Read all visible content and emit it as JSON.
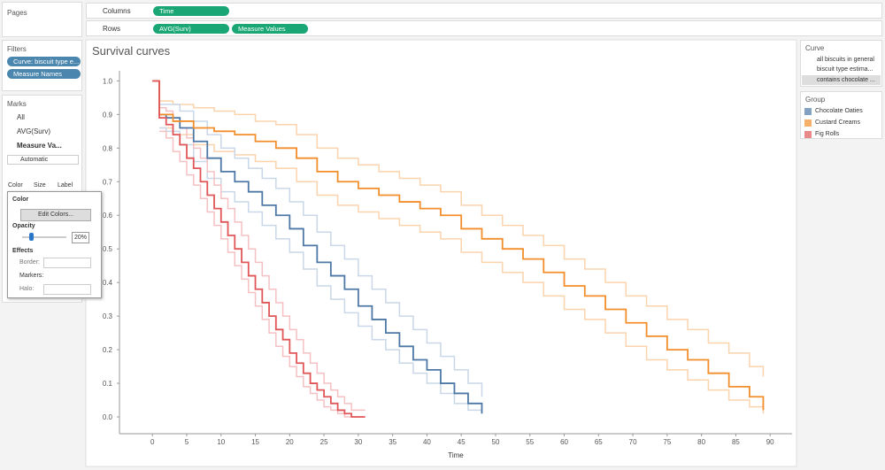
{
  "shelves": {
    "columns_label": "Columns",
    "columns_pills": [
      "Time"
    ],
    "rows_label": "Rows",
    "rows_pills": [
      "AVG(Surv)",
      "Measure Values"
    ]
  },
  "left_panel": {
    "pages_title": "Pages",
    "filters_title": "Filters",
    "filter_pills": [
      "Curve: biscuit type e...",
      "Measure Names"
    ],
    "marks_title": "Marks",
    "marks_cards": [
      "All",
      "AVG(Surv)",
      "Measure Va..."
    ],
    "mark_type": "Automatic",
    "mark_buttons": [
      "Color",
      "Size",
      "Label"
    ]
  },
  "popup": {
    "title": "Color",
    "edit_button": "Edit Colors...",
    "opacity_label": "Opacity",
    "opacity_value": "20%",
    "effects_label": "Effects",
    "border_label": "Border:",
    "markers_label": "Markers:",
    "halo_label": "Halo:"
  },
  "curve_legend": {
    "title": "Curve",
    "options": [
      "all biscuits in general",
      "biscuit type estima...",
      "contains chocolate ..."
    ]
  },
  "group_legend_title": "Group",
  "chart_data": {
    "type": "step-line",
    "title": "Survival curves",
    "x_label": "Time",
    "xlim": [
      -4.8,
      93.2
    ],
    "ylim": [
      -0.05,
      1.03
    ],
    "xticks": [
      0,
      5,
      10,
      15,
      20,
      25,
      30,
      35,
      40,
      45,
      50,
      55,
      60,
      65,
      70,
      75,
      80,
      85,
      90
    ],
    "yticks": [
      {
        "value": 0,
        "label": "0.0"
      },
      0.1,
      0.2,
      0.3,
      0.4,
      0.5,
      0.6,
      0.7,
      0.8,
      0.9,
      {
        "value": 1,
        "label": "1.0"
      }
    ],
    "grid": false,
    "series": [
      {
        "color": "#fbd3ad",
        "x": [
          1,
          3,
          6,
          9,
          12,
          15,
          18,
          21,
          24,
          27,
          30,
          33,
          36,
          39,
          42,
          45,
          48,
          51,
          54,
          57,
          60,
          63,
          66,
          69,
          72,
          75,
          78,
          81,
          84,
          87,
          89
        ],
        "values": [
          0.94,
          0.93,
          0.92,
          0.91,
          0.9,
          0.88,
          0.87,
          0.84,
          0.8,
          0.77,
          0.75,
          0.73,
          0.71,
          0.69,
          0.67,
          0.63,
          0.6,
          0.57,
          0.54,
          0.51,
          0.47,
          0.44,
          0.4,
          0.36,
          0.33,
          0.29,
          0.26,
          0.22,
          0.19,
          0.15,
          0.12
        ]
      },
      {
        "color": "#fbd3ad",
        "x": [
          1,
          3,
          6,
          9,
          12,
          15,
          18,
          21,
          24,
          27,
          30,
          33,
          36,
          39,
          42,
          45,
          48,
          51,
          54,
          57,
          60,
          63,
          66,
          69,
          72,
          75,
          78,
          81,
          84,
          87,
          89
        ],
        "values": [
          0.86,
          0.84,
          0.81,
          0.79,
          0.78,
          0.76,
          0.74,
          0.7,
          0.66,
          0.63,
          0.61,
          0.59,
          0.57,
          0.55,
          0.53,
          0.49,
          0.46,
          0.43,
          0.4,
          0.36,
          0.32,
          0.29,
          0.25,
          0.21,
          0.17,
          0.14,
          0.11,
          0.08,
          0.05,
          0.03,
          0.01
        ]
      },
      {
        "color": "#c9d7e8",
        "x": [
          1,
          2,
          4,
          6,
          8,
          10,
          12,
          14,
          16,
          18,
          20,
          22,
          24,
          26,
          28,
          30,
          32,
          34,
          36,
          38,
          40,
          42,
          44,
          46,
          48
        ],
        "values": [
          0.93,
          0.93,
          0.91,
          0.88,
          0.84,
          0.8,
          0.77,
          0.74,
          0.71,
          0.68,
          0.64,
          0.6,
          0.55,
          0.51,
          0.47,
          0.42,
          0.38,
          0.34,
          0.3,
          0.26,
          0.22,
          0.18,
          0.14,
          0.1,
          0.06
        ]
      },
      {
        "color": "#c9d7e8",
        "x": [
          1,
          2,
          4,
          6,
          8,
          10,
          12,
          14,
          16,
          18,
          20,
          22,
          24,
          26,
          28,
          30,
          32,
          34,
          36,
          38,
          40,
          42,
          44,
          46,
          48
        ],
        "values": [
          0.86,
          0.85,
          0.81,
          0.76,
          0.71,
          0.67,
          0.64,
          0.61,
          0.57,
          0.53,
          0.49,
          0.44,
          0.39,
          0.35,
          0.31,
          0.27,
          0.23,
          0.2,
          0.16,
          0.13,
          0.1,
          0.07,
          0.04,
          0.02,
          0.01
        ]
      },
      {
        "color": "#f5c0c3",
        "x": [
          1,
          2,
          3,
          4,
          5,
          6,
          7,
          8,
          9,
          10,
          11,
          12,
          13,
          14,
          15,
          16,
          17,
          18,
          19,
          20,
          21,
          22,
          23,
          24,
          25,
          26,
          27,
          28,
          29,
          31
        ],
        "values": [
          0.92,
          0.91,
          0.89,
          0.86,
          0.83,
          0.8,
          0.77,
          0.73,
          0.69,
          0.65,
          0.62,
          0.58,
          0.54,
          0.5,
          0.46,
          0.42,
          0.38,
          0.34,
          0.3,
          0.26,
          0.23,
          0.19,
          0.16,
          0.13,
          0.1,
          0.08,
          0.06,
          0.04,
          0.02,
          0.02
        ]
      },
      {
        "color": "#f5c0c3",
        "x": [
          1,
          2,
          3,
          4,
          5,
          6,
          7,
          8,
          9,
          10,
          11,
          12,
          13,
          14,
          15,
          16,
          17,
          18,
          19,
          20,
          21,
          22,
          23,
          24,
          25,
          26,
          27,
          28,
          29,
          31
        ],
        "values": [
          0.85,
          0.83,
          0.79,
          0.76,
          0.72,
          0.69,
          0.65,
          0.61,
          0.57,
          0.53,
          0.49,
          0.45,
          0.41,
          0.37,
          0.33,
          0.29,
          0.25,
          0.21,
          0.18,
          0.15,
          0.12,
          0.09,
          0.07,
          0.05,
          0.03,
          0.02,
          0.01,
          0,
          0,
          0
        ]
      },
      {
        "name": "Chocolate Oaties",
        "color": "#4e79a7",
        "x": [
          0,
          1,
          2,
          4,
          6,
          8,
          10,
          12,
          14,
          16,
          18,
          20,
          22,
          24,
          26,
          28,
          30,
          32,
          34,
          36,
          38,
          40,
          42,
          44,
          46,
          48
        ],
        "values": [
          1.0,
          0.9,
          0.89,
          0.86,
          0.82,
          0.77,
          0.73,
          0.7,
          0.67,
          0.63,
          0.6,
          0.56,
          0.51,
          0.46,
          0.42,
          0.38,
          0.33,
          0.29,
          0.25,
          0.21,
          0.17,
          0.14,
          0.1,
          0.07,
          0.04,
          0.01
        ]
      },
      {
        "name": "Custard Creams",
        "color": "#f28e2b",
        "x": [
          0,
          1,
          3,
          6,
          9,
          12,
          15,
          18,
          21,
          24,
          27,
          30,
          33,
          36,
          39,
          42,
          45,
          48,
          51,
          54,
          57,
          60,
          63,
          66,
          69,
          72,
          75,
          78,
          81,
          84,
          87,
          89
        ],
        "values": [
          1.0,
          0.9,
          0.88,
          0.86,
          0.85,
          0.84,
          0.82,
          0.8,
          0.77,
          0.73,
          0.7,
          0.68,
          0.66,
          0.64,
          0.62,
          0.6,
          0.56,
          0.53,
          0.5,
          0.47,
          0.43,
          0.39,
          0.36,
          0.32,
          0.28,
          0.24,
          0.2,
          0.17,
          0.13,
          0.09,
          0.06,
          0.02
        ]
      },
      {
        "name": "Fig Rolls",
        "color": "#e15759",
        "x": [
          0,
          1,
          2,
          3,
          4,
          5,
          6,
          7,
          8,
          9,
          10,
          11,
          12,
          13,
          14,
          15,
          16,
          17,
          18,
          19,
          20,
          21,
          22,
          23,
          24,
          25,
          26,
          27,
          28,
          29,
          31
        ],
        "values": [
          1.0,
          0.89,
          0.87,
          0.84,
          0.81,
          0.77,
          0.74,
          0.7,
          0.66,
          0.62,
          0.58,
          0.54,
          0.5,
          0.46,
          0.42,
          0.38,
          0.34,
          0.3,
          0.26,
          0.23,
          0.19,
          0.16,
          0.13,
          0.1,
          0.08,
          0.06,
          0.04,
          0.02,
          0.01,
          0,
          0
        ]
      }
    ]
  }
}
